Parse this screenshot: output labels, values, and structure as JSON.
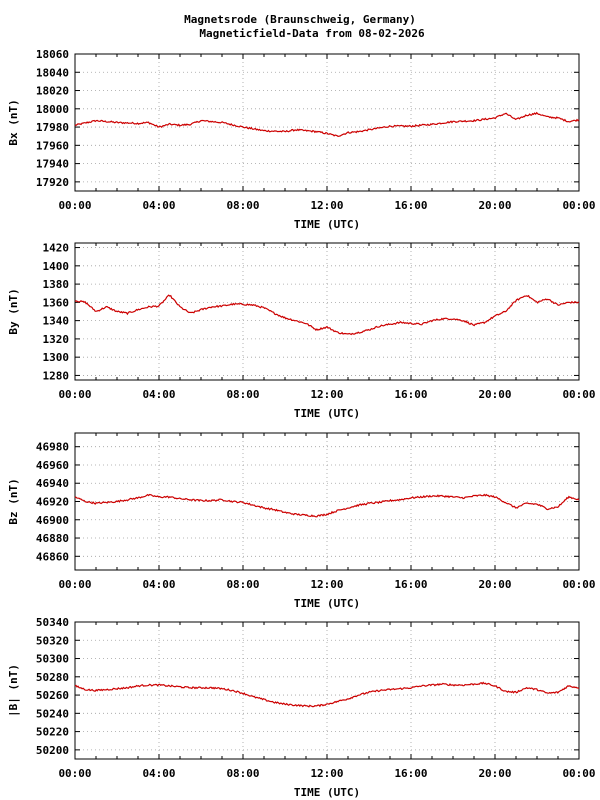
{
  "title_line1": "Magnetsrode (Braunschweig, Germany)",
  "title_line2": "Magneticfield-Data from 08-02-2026",
  "colors": {
    "series": "#cc0000",
    "grid": "#a0a0a0",
    "axis": "#000000"
  },
  "chart_data": [
    {
      "type": "line",
      "xlabel": "TIME (UTC)",
      "ylabel": "Bx (nT)",
      "xlim": [
        0,
        24
      ],
      "ylim": [
        17910,
        18060
      ],
      "x_ticks": [
        "00:00",
        "04:00",
        "08:00",
        "12:00",
        "16:00",
        "20:00",
        "00:00"
      ],
      "y_ticks": [
        17920,
        17940,
        17960,
        17980,
        18000,
        18020,
        18040,
        18060
      ],
      "grid": true,
      "series": [
        {
          "hours": [
            0,
            1,
            2,
            3,
            3.5,
            4,
            4.5,
            5,
            5.5,
            6,
            7,
            8,
            9,
            10,
            10.5,
            11,
            11.5,
            12,
            12.5,
            13,
            13.5,
            14,
            15,
            16,
            17,
            18,
            19,
            20,
            20.5,
            21,
            21.5,
            22,
            22.5,
            23,
            23.5,
            24
          ],
          "values": [
            17982,
            17987,
            17985,
            17984,
            17985,
            17980,
            17983,
            17982,
            17983,
            17987,
            17985,
            17980,
            17976,
            17975,
            17977,
            17976,
            17975,
            17973,
            17970,
            17974,
            17975,
            17977,
            17981,
            17981,
            17983,
            17986,
            17987,
            17990,
            17995,
            17988,
            17993,
            17995,
            17991,
            17990,
            17986,
            17988
          ]
        }
      ]
    },
    {
      "type": "line",
      "xlabel": "TIME (UTC)",
      "ylabel": "By (nT)",
      "xlim": [
        0,
        24
      ],
      "ylim": [
        1275,
        1425
      ],
      "x_ticks": [
        "00:00",
        "04:00",
        "08:00",
        "12:00",
        "16:00",
        "20:00",
        "00:00"
      ],
      "y_ticks": [
        1280,
        1300,
        1320,
        1340,
        1360,
        1380,
        1400,
        1420
      ],
      "grid": true,
      "series": [
        {
          "hours": [
            0,
            0.5,
            1,
            1.5,
            2,
            2.5,
            3,
            3.5,
            4,
            4.5,
            5,
            5.5,
            6,
            6.5,
            7,
            7.5,
            8,
            8.5,
            9,
            9.5,
            10,
            10.5,
            11,
            11.5,
            12,
            12.5,
            13,
            13.5,
            14,
            14.5,
            15,
            15.5,
            16,
            16.5,
            17,
            17.5,
            18,
            18.5,
            19,
            19.5,
            20,
            20.5,
            21,
            21.5,
            22,
            22.5,
            23,
            23.5,
            24
          ],
          "values": [
            1362,
            1360,
            1350,
            1355,
            1350,
            1348,
            1352,
            1355,
            1356,
            1368,
            1355,
            1348,
            1352,
            1355,
            1356,
            1358,
            1358,
            1357,
            1354,
            1348,
            1343,
            1340,
            1337,
            1330,
            1333,
            1327,
            1325,
            1327,
            1330,
            1334,
            1336,
            1338,
            1337,
            1336,
            1340,
            1342,
            1342,
            1340,
            1335,
            1338,
            1345,
            1350,
            1362,
            1368,
            1360,
            1364,
            1357,
            1360,
            1360
          ]
        }
      ]
    },
    {
      "type": "line",
      "xlabel": "TIME (UTC)",
      "ylabel": "Bz (nT)",
      "xlim": [
        0,
        24
      ],
      "ylim": [
        46845,
        46995
      ],
      "x_ticks": [
        "00:00",
        "04:00",
        "08:00",
        "12:00",
        "16:00",
        "20:00",
        "00:00"
      ],
      "y_ticks": [
        46860,
        46880,
        46900,
        46920,
        46940,
        46960,
        46980
      ],
      "grid": true,
      "series": [
        {
          "hours": [
            0,
            0.5,
            1,
            1.5,
            2,
            2.5,
            3,
            3.5,
            4,
            4.5,
            5,
            5.5,
            6,
            6.5,
            7,
            7.5,
            8,
            8.5,
            9,
            9.5,
            10,
            10.5,
            11,
            11.5,
            12,
            12.5,
            13,
            13.5,
            14,
            14.5,
            15,
            15.5,
            16,
            16.5,
            17,
            17.5,
            18,
            18.5,
            19,
            19.5,
            20,
            20.5,
            21,
            21.5,
            22,
            22.5,
            23,
            23.5,
            24
          ],
          "values": [
            46925,
            46920,
            46918,
            46919,
            46920,
            46922,
            46924,
            46927,
            46925,
            46925,
            46923,
            46922,
            46921,
            46921,
            46922,
            46920,
            46919,
            46916,
            46913,
            46911,
            46908,
            46906,
            46905,
            46904,
            46906,
            46910,
            46913,
            46916,
            46918,
            46919,
            46921,
            46922,
            46924,
            46925,
            46926,
            46926,
            46925,
            46924,
            46926,
            46927,
            46925,
            46919,
            46913,
            46918,
            46917,
            46912,
            46914,
            46925,
            46922
          ]
        }
      ]
    },
    {
      "type": "line",
      "xlabel": "TIME (UTC)",
      "ylabel": "|B| (nT)",
      "xlim": [
        0,
        24
      ],
      "ylim": [
        50190,
        50340
      ],
      "x_ticks": [
        "00:00",
        "04:00",
        "08:00",
        "12:00",
        "16:00",
        "20:00",
        "00:00"
      ],
      "y_ticks": [
        50200,
        50220,
        50240,
        50260,
        50280,
        50300,
        50320,
        50340
      ],
      "grid": true,
      "series": [
        {
          "hours": [
            0,
            0.5,
            1,
            1.5,
            2,
            2.5,
            3,
            3.5,
            4,
            4.5,
            5,
            5.5,
            6,
            6.5,
            7,
            7.5,
            8,
            8.5,
            9,
            9.5,
            10,
            10.5,
            11,
            11.5,
            12,
            12.5,
            13,
            13.5,
            14,
            14.5,
            15,
            15.5,
            16,
            16.5,
            17,
            17.5,
            18,
            18.5,
            19,
            19.5,
            20,
            20.5,
            21,
            21.5,
            22,
            22.5,
            23,
            23.5,
            24
          ],
          "values": [
            50270,
            50266,
            50265,
            50266,
            50267,
            50268,
            50270,
            50271,
            50271,
            50270,
            50269,
            50268,
            50268,
            50268,
            50267,
            50265,
            50262,
            50258,
            50255,
            50252,
            50250,
            50249,
            50248,
            50248,
            50250,
            50253,
            50256,
            50260,
            50263,
            50265,
            50266,
            50267,
            50268,
            50270,
            50271,
            50272,
            50271,
            50271,
            50272,
            50273,
            50270,
            50264,
            50263,
            50268,
            50266,
            50262,
            50263,
            50270,
            50268
          ]
        }
      ]
    }
  ]
}
